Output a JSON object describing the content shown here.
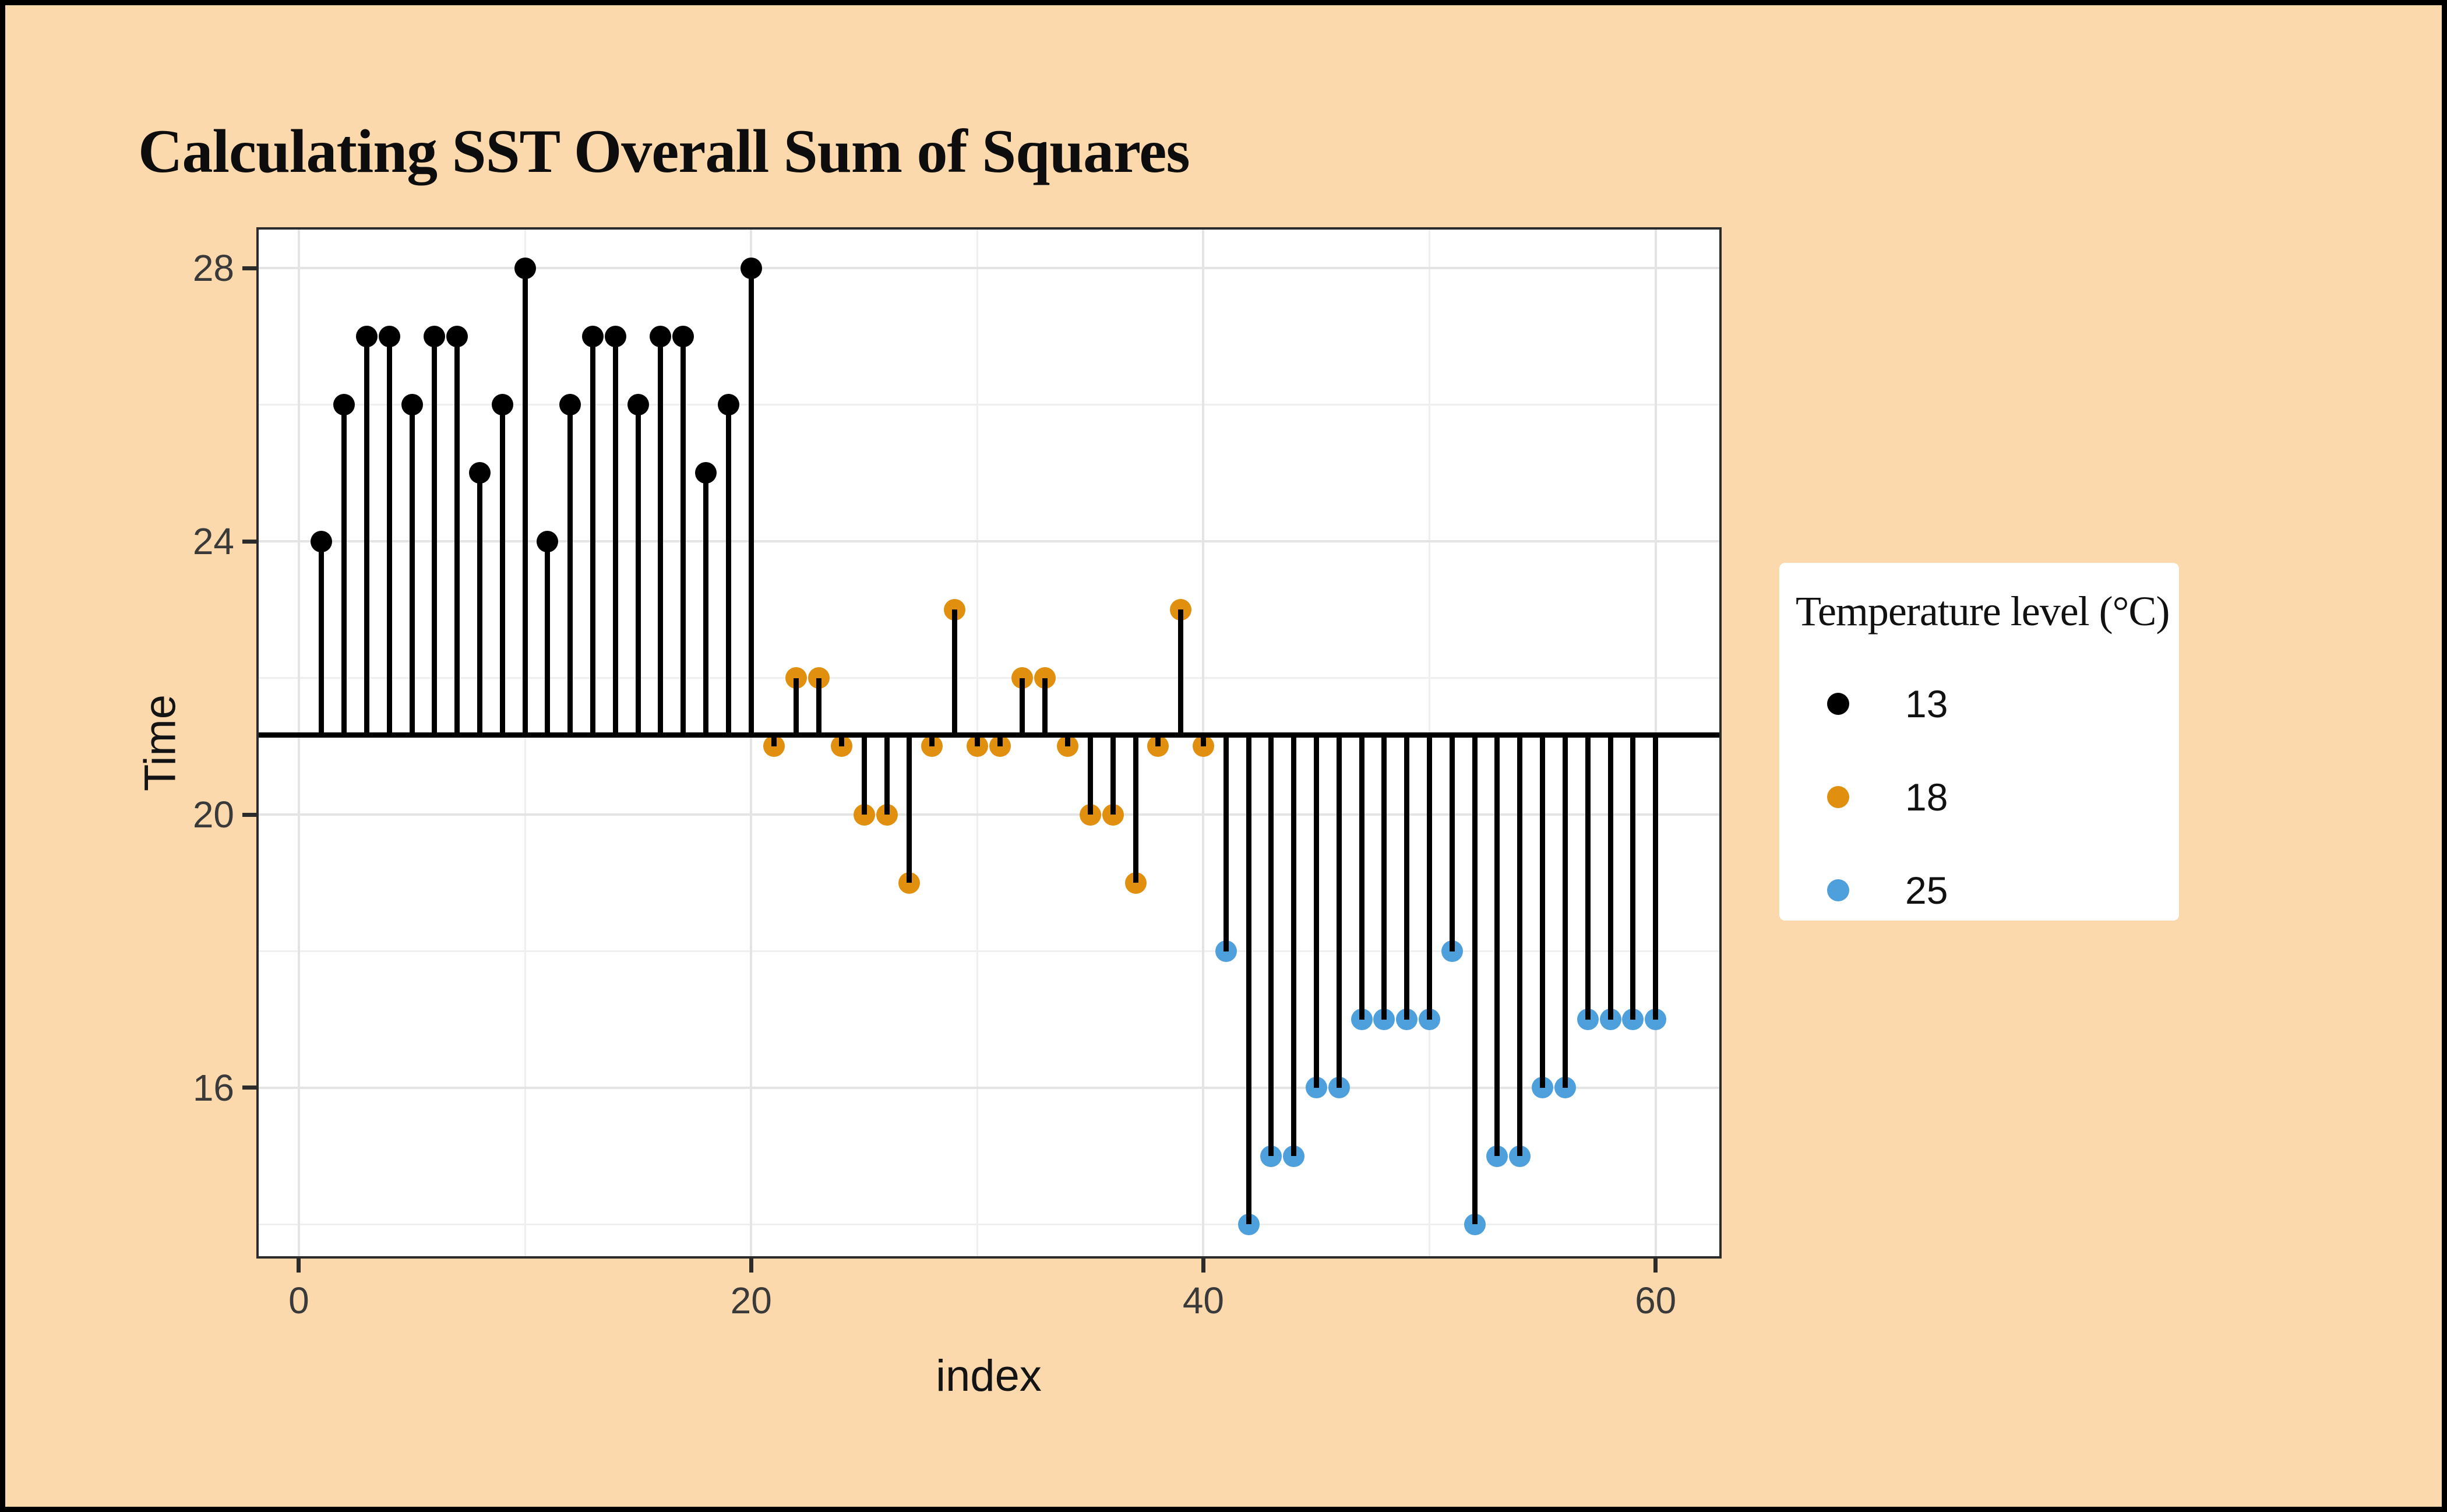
{
  "title": "Calculating SST Overall Sum of Squares",
  "axes": {
    "x": {
      "label": "index",
      "ticks": [
        "0",
        "20",
        "40",
        "60"
      ],
      "tick_values": [
        0,
        20,
        40,
        60
      ],
      "minor": [
        10,
        30,
        50
      ]
    },
    "y": {
      "label": "Time",
      "ticks": [
        "28",
        "24",
        "20",
        "16"
      ],
      "tick_values": [
        28,
        24,
        20,
        16
      ],
      "minor": [
        26,
        22,
        18,
        14
      ]
    }
  },
  "legend": {
    "title": "Temperature level (°C)",
    "items": [
      {
        "label": "13",
        "color": "#000000"
      },
      {
        "label": "18",
        "color": "#E0900E"
      },
      {
        "label": "25",
        "color": "#4DA0DB"
      }
    ]
  },
  "colors": {
    "background": "#FCD9AD",
    "frame": "#000000",
    "panel": "#FFFFFF",
    "panel_border": "#2B2B2B",
    "grid_major": "#E4E4E4",
    "grid_minor": "#EFEFEF",
    "tick": "#2B2B2B",
    "tick_label": "#3A3A3A",
    "stem": "#000000",
    "legend_background": "#FFFFFF"
  },
  "chart_data": {
    "type": "scatter",
    "subtype": "lollipop-stem",
    "title": "Calculating SST Overall Sum of Squares",
    "xlabel": "index",
    "ylabel": "Time",
    "xlim": [
      -1.88,
      62.92
    ],
    "ylim": [
      13.5,
      28.6
    ],
    "grid": "on",
    "legend_position": "right",
    "legend_title": "Temperature level (°C)",
    "overall_mean": 21.1667,
    "series": [
      {
        "name": "13",
        "color": "#000000",
        "x": [
          1,
          2,
          3,
          4,
          5,
          6,
          7,
          8,
          9,
          10,
          11,
          12,
          13,
          14,
          15,
          16,
          17,
          18,
          19,
          20
        ],
        "y": [
          24,
          26,
          27,
          27,
          26,
          27,
          27,
          25,
          26,
          28,
          24,
          26,
          27,
          27,
          26,
          27,
          27,
          25,
          26,
          28
        ]
      },
      {
        "name": "18",
        "color": "#E0900E",
        "x": [
          21,
          22,
          23,
          24,
          25,
          26,
          27,
          28,
          29,
          30,
          31,
          32,
          33,
          34,
          35,
          36,
          37,
          38,
          39,
          40
        ],
        "y": [
          21,
          22,
          22,
          21,
          20,
          20,
          19,
          21,
          23,
          21,
          21,
          22,
          22,
          21,
          20,
          20,
          19,
          21,
          23,
          21
        ]
      },
      {
        "name": "25",
        "color": "#4DA0DB",
        "x": [
          41,
          42,
          43,
          44,
          45,
          46,
          47,
          48,
          49,
          50,
          51,
          52,
          53,
          54,
          55,
          56,
          57,
          58,
          59,
          60
        ],
        "y": [
          18,
          14,
          15,
          15,
          16,
          16,
          17,
          17,
          17,
          17,
          18,
          14,
          15,
          15,
          16,
          16,
          17,
          17,
          17,
          17
        ]
      }
    ]
  }
}
